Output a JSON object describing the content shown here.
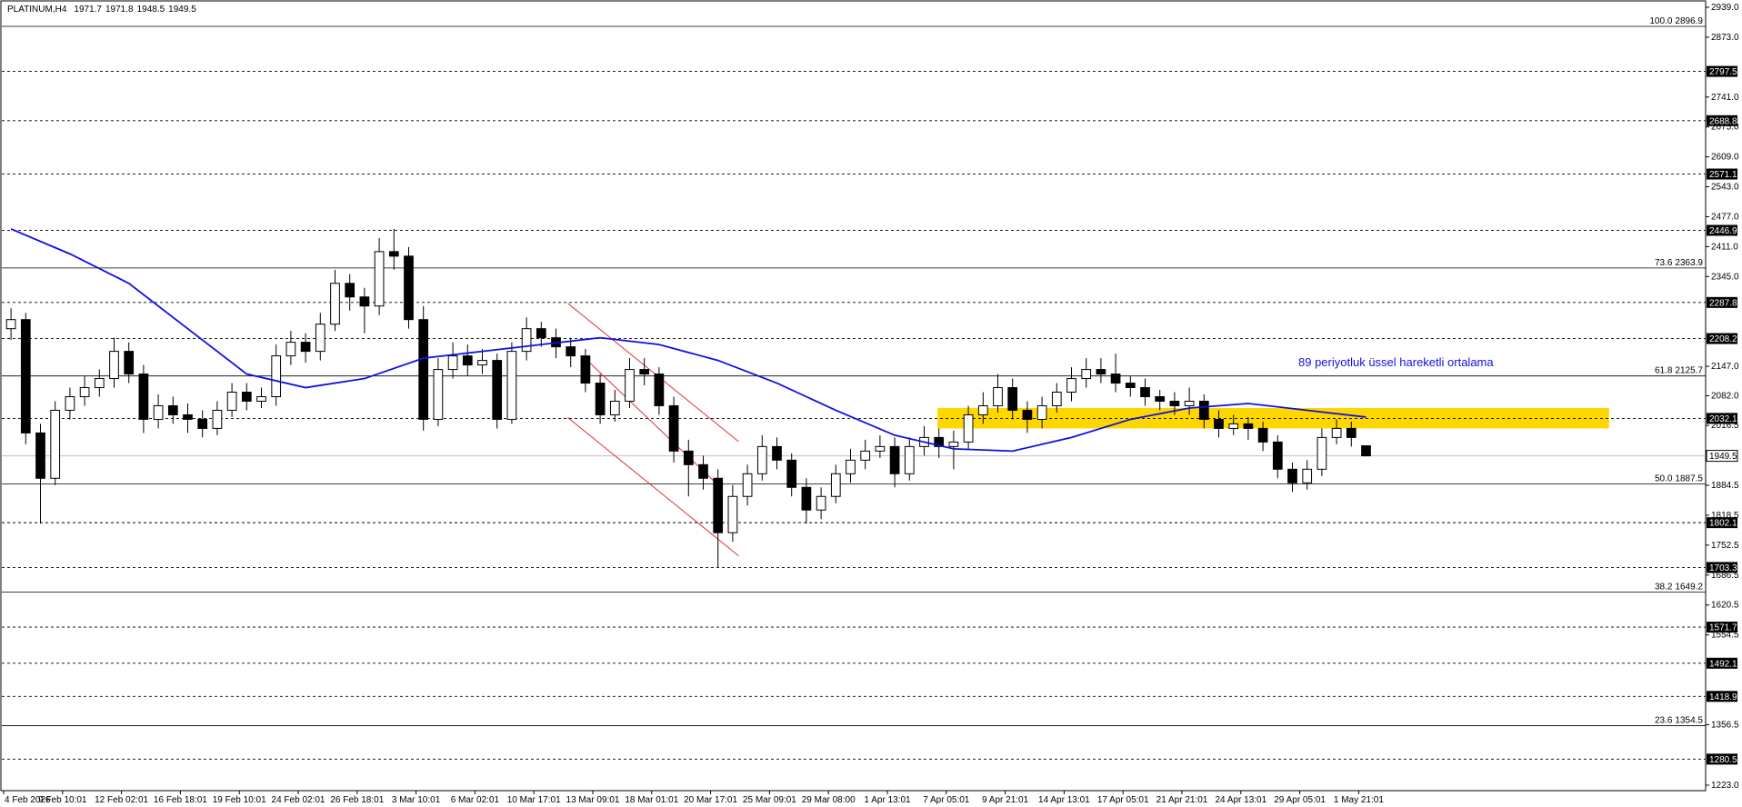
{
  "chart_data": {
    "type": "candlestick",
    "title": "PLATINUM,H4",
    "quote": [
      1971.7,
      1971.8,
      1948.5,
      1949.5
    ],
    "ylim": [
      1211,
      2951
    ],
    "yticks": [
      {
        "value": 2939,
        "label": "2939.0"
      },
      {
        "value": 2873,
        "label": "2873.0"
      },
      {
        "value": 2741,
        "label": "2741.0"
      },
      {
        "value": 2675,
        "label": "2675.0"
      },
      {
        "value": 2609,
        "label": "2609.0"
      },
      {
        "value": 2543,
        "label": "2543.0"
      },
      {
        "value": 2477,
        "label": "2477.0"
      },
      {
        "value": 2411,
        "label": "2411.0"
      },
      {
        "value": 2345,
        "label": "2345.0"
      },
      {
        "value": 2147,
        "label": "2147.0"
      },
      {
        "value": 2082,
        "label": "2082.0"
      },
      2016.5,
      1884.5,
      1818.5,
      1752.5,
      1686.5,
      1620.5,
      1554.5,
      1356.5,
      {
        "value": 1223,
        "label": "1223.0"
      }
    ],
    "xlabels": [
      "4 Feb 2026",
      "9 Feb 10:01",
      "12 Feb 02:01",
      "16 Feb 18:01",
      "19 Feb 10:01",
      "24 Feb 02:01",
      "26 Feb 18:01",
      "3 Mar 10:01",
      "6 Mar 02:01",
      "10 Mar 17:01",
      "13 Mar 09:01",
      "18 Mar 01:01",
      "20 Mar 17:01",
      "25 Mar 09:01",
      "29 Mar 08:00",
      "1 Apr 13:01",
      "7 Apr 05:01",
      "9 Apr 21:01",
      "14 Apr 13:01",
      "17 Apr 05:01",
      "21 Apr 21:01",
      "24 Apr 13:01",
      "29 Apr 05:01",
      "1 May 21:01"
    ],
    "candles": {
      "open": [
        2230,
        2250,
        2000,
        1900,
        2050,
        2080,
        2100,
        2120,
        2180,
        2130,
        2030,
        2060,
        2040,
        2030,
        2010,
        2050,
        2090,
        2070,
        2080,
        2170,
        2200,
        2180,
        2240,
        2330,
        2300,
        2280,
        2400,
        2390,
        2250,
        2030,
        2140,
        2170,
        2150,
        2160,
        2030,
        2180,
        2230,
        2210,
        2190,
        2170,
        2110,
        2040,
        2070,
        2140,
        2130,
        2060,
        1960,
        1930,
        1900,
        1780,
        1860,
        1910,
        1970,
        1940,
        1880,
        1830,
        1860,
        1910,
        1940,
        1960,
        1970,
        1910,
        1970,
        1990,
        1970,
        1980,
        2040,
        2060,
        2100,
        2050,
        2030,
        2060,
        2090,
        2120,
        2140,
        2130,
        2110,
        2100,
        2080,
        2070,
        2060,
        2070,
        2030,
        2010,
        2020,
        2010,
        1980,
        1920,
        1890,
        1920,
        1990,
        2010,
        1971.7
      ],
      "high": [
        2275,
        2265,
        2020,
        2070,
        2100,
        2125,
        2140,
        2210,
        2200,
        2150,
        2085,
        2080,
        2065,
        2050,
        2070,
        2110,
        2110,
        2100,
        2195,
        2225,
        2220,
        2265,
        2360,
        2350,
        2320,
        2430,
        2450,
        2410,
        2280,
        2165,
        2200,
        2195,
        2185,
        2175,
        2200,
        2255,
        2245,
        2230,
        2210,
        2185,
        2130,
        2095,
        2165,
        2165,
        2145,
        2080,
        1985,
        1950,
        1920,
        1885,
        1930,
        1995,
        1990,
        1955,
        1900,
        1880,
        1930,
        1965,
        1985,
        1995,
        1990,
        1990,
        2015,
        2010,
        2005,
        2060,
        2090,
        2130,
        2120,
        2070,
        2080,
        2110,
        2145,
        2165,
        2165,
        2175,
        2125,
        2120,
        2095,
        2090,
        2100,
        2085,
        2050,
        2040,
        2035,
        2025,
        1995,
        1935,
        1940,
        2010,
        2030,
        2025,
        1971.8
      ],
      "low": [
        2205,
        1975,
        1800,
        1885,
        2030,
        2060,
        2080,
        2100,
        2110,
        2000,
        2010,
        2020,
        2000,
        1990,
        1995,
        2035,
        2050,
        2055,
        2060,
        2150,
        2155,
        2160,
        2225,
        2270,
        2220,
        2260,
        2360,
        2230,
        2005,
        2015,
        2120,
        2125,
        2130,
        2010,
        2020,
        2160,
        2190,
        2165,
        2145,
        2090,
        2020,
        2025,
        2055,
        2105,
        2040,
        1935,
        1860,
        1875,
        1703,
        1760,
        1840,
        1895,
        1920,
        1860,
        1800,
        1810,
        1845,
        1890,
        1920,
        1945,
        1880,
        1895,
        1950,
        1945,
        1920,
        1965,
        2020,
        2045,
        2030,
        2000,
        2010,
        2045,
        2070,
        2100,
        2110,
        2090,
        2080,
        2060,
        2050,
        2040,
        2040,
        2010,
        1990,
        1995,
        1985,
        1960,
        1900,
        1870,
        1875,
        1905,
        1975,
        1970,
        1948.5
      ],
      "close": [
        2250,
        2000,
        1900,
        2050,
        2080,
        2100,
        2120,
        2180,
        2130,
        2030,
        2060,
        2040,
        2030,
        2010,
        2050,
        2090,
        2070,
        2080,
        2170,
        2200,
        2180,
        2240,
        2330,
        2300,
        2280,
        2400,
        2390,
        2250,
        2030,
        2140,
        2170,
        2150,
        2160,
        2030,
        2180,
        2230,
        2210,
        2190,
        2170,
        2110,
        2040,
        2070,
        2140,
        2130,
        2060,
        1960,
        1930,
        1900,
        1780,
        1860,
        1910,
        1970,
        1940,
        1880,
        1830,
        1860,
        1910,
        1940,
        1960,
        1970,
        1910,
        1970,
        1990,
        1970,
        1980,
        2040,
        2060,
        2100,
        2050,
        2030,
        2060,
        2090,
        2120,
        2140,
        2130,
        2110,
        2100,
        2080,
        2070,
        2060,
        2070,
        2030,
        2010,
        2020,
        2010,
        1980,
        1920,
        1890,
        1920,
        1990,
        2010,
        1990,
        1949.5
      ]
    },
    "ema": {
      "label": "89 periyotluk üssel hareketli ortalama",
      "color": "#1010e0",
      "values": [
        2450,
        2395,
        2330,
        2230,
        2130,
        2100,
        2120,
        2165,
        2180,
        2195,
        2210,
        2195,
        2160,
        2110,
        2050,
        1995,
        1965,
        1960,
        1990,
        2030,
        2055,
        2065,
        2050,
        2035
      ]
    },
    "levels": [
      2797.5,
      2688.8,
      2571.1,
      2446.9,
      2287.8,
      2208.2,
      2032.1,
      1802.1,
      1703.3,
      1571.7,
      1492.1,
      1418.9,
      1280.5
    ],
    "fib": [
      {
        "level": "100.0",
        "value": 2896.9
      },
      {
        "level": "73.6",
        "value": 2363.9
      },
      {
        "level": "61.8",
        "value": 2125.7
      },
      {
        "level": "50.0",
        "value": 1887.5
      },
      {
        "level": "38.2",
        "value": 1649.2
      },
      {
        "level": "23.6",
        "value": 1354.5
      }
    ],
    "current_price": 1949.5,
    "zone": {
      "low": 2010,
      "high": 2055,
      "start": 63.4,
      "end": 109,
      "color": "#ffd700"
    },
    "channel": {
      "color": "#e03030",
      "lines": [
        {
          "x": [
            38.3,
            49.9
          ],
          "y": [
            2286,
            1981
          ]
        },
        {
          "x": [
            39.5,
            48.8
          ],
          "y": [
            2164,
            1876
          ]
        },
        {
          "x": [
            38.3,
            49.9
          ],
          "y": [
            2034,
            1729
          ]
        }
      ]
    }
  }
}
